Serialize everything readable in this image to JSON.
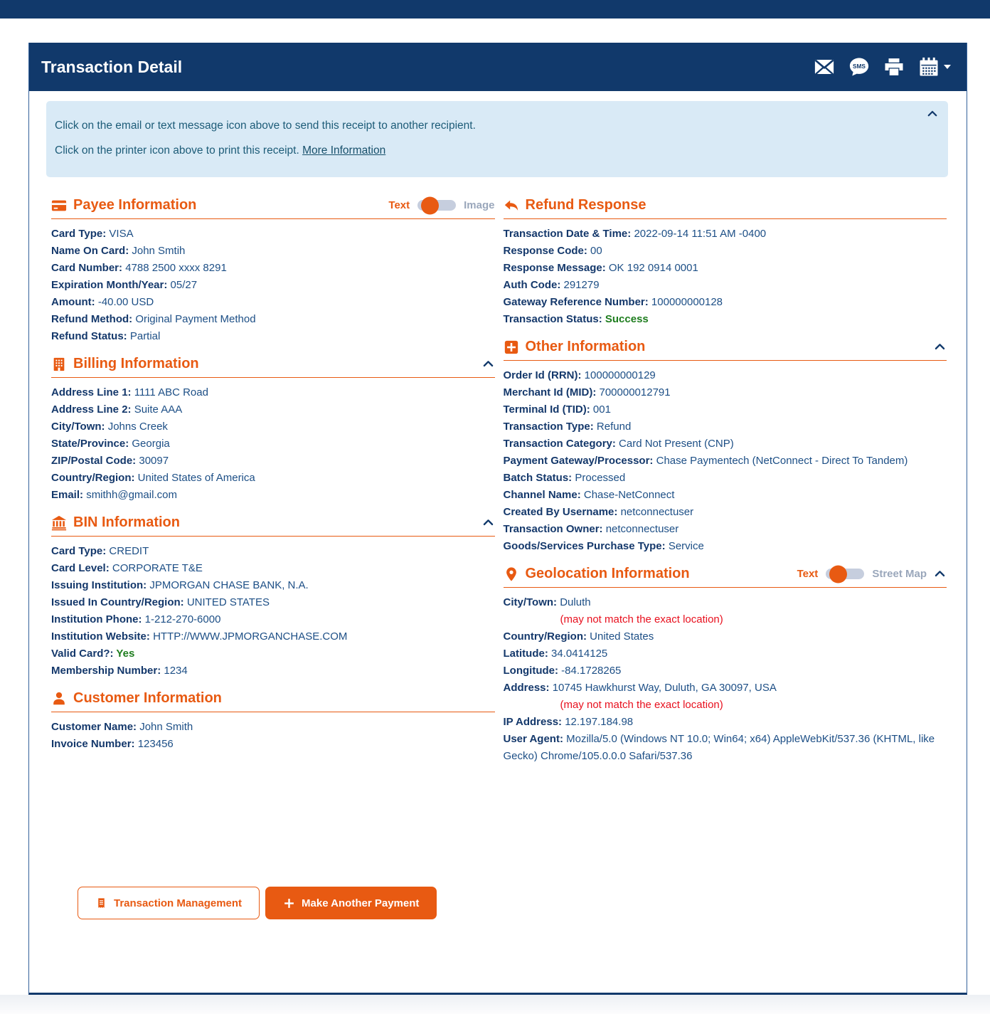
{
  "colors": {
    "navy": "#11396B",
    "accent_orange": "#E85A12",
    "success_green": "#1E7D1E",
    "alert_red": "#E8101E",
    "banner_bg": "#D9EAF6",
    "toggle_track": "#C6CEDE"
  },
  "header": {
    "title": "Transaction Detail",
    "icons": [
      {
        "name": "email-icon"
      },
      {
        "name": "sms-icon"
      },
      {
        "name": "print-icon"
      },
      {
        "name": "calendar-icon"
      }
    ]
  },
  "banner": {
    "line1": "Click on the email or text message icon above to send this receipt to another recipient.",
    "line2": "Click on the printer icon above to print this receipt.",
    "link_label": "More Information"
  },
  "sections": {
    "payee": {
      "title": "Payee Information",
      "toggle": {
        "on": "Text",
        "off": "Image"
      },
      "fields": [
        {
          "label": "Card Type",
          "value": "VISA"
        },
        {
          "label": "Name On Card",
          "value": "John Smtih"
        },
        {
          "label": "Card Number",
          "value": "4788 2500 xxxx 8291"
        },
        {
          "label": "Expiration Month/Year",
          "value": "05/27"
        },
        {
          "label": "Amount",
          "value": "-40.00 USD"
        },
        {
          "label": "Refund Method",
          "value": "Original Payment Method"
        },
        {
          "label": "Refund Status",
          "value": "Partial"
        }
      ]
    },
    "billing": {
      "title": "Billing Information",
      "fields": [
        {
          "label": "Address Line 1",
          "value": "1111 ABC Road"
        },
        {
          "label": "Address Line 2",
          "value": "Suite AAA"
        },
        {
          "label": "City/Town",
          "value": "Johns Creek"
        },
        {
          "label": "State/Province",
          "value": "Georgia"
        },
        {
          "label": "ZIP/Postal Code",
          "value": "30097"
        },
        {
          "label": "Country/Region",
          "value": "United States of America"
        },
        {
          "label": "Email",
          "value": "smithh@gmail.com"
        }
      ]
    },
    "bin": {
      "title": "BIN Information",
      "fields": [
        {
          "label": "Card Type",
          "value": "CREDIT"
        },
        {
          "label": "Card Level",
          "value": "CORPORATE T&E"
        },
        {
          "label": "Issuing Institution",
          "value": "JPMORGAN CHASE BANK, N.A."
        },
        {
          "label": "Issued In Country/Region",
          "value": "UNITED STATES"
        },
        {
          "label": "Institution Phone",
          "value": "1-212-270-6000"
        },
        {
          "label": "Institution Website",
          "value": "HTTP://WWW.JPMORGANCHASE.COM"
        },
        {
          "label": "Valid Card?",
          "value": "Yes",
          "color": "green"
        },
        {
          "label": "Membership Number",
          "value": "1234"
        }
      ]
    },
    "customer": {
      "title": "Customer Information",
      "fields": [
        {
          "label": "Customer Name",
          "value": "John Smith"
        },
        {
          "label": "Invoice Number",
          "value": "123456"
        }
      ]
    },
    "refund": {
      "title": "Refund Response",
      "fields": [
        {
          "label": "Transaction Date & Time",
          "value": "2022-09-14 11:51 AM -0400"
        },
        {
          "label": "Response Code",
          "value": "00"
        },
        {
          "label": "Response Message",
          "value": "OK 192 0914 0001"
        },
        {
          "label": "Auth Code",
          "value": "291279"
        },
        {
          "label": "Gateway Reference Number",
          "value": "100000000128"
        },
        {
          "label": "Transaction Status",
          "value": "Success",
          "color": "green"
        }
      ]
    },
    "other": {
      "title": "Other Information",
      "fields": [
        {
          "label": "Order Id (RRN)",
          "value": "100000000129"
        },
        {
          "label": "Merchant Id (MID)",
          "value": "700000012791"
        },
        {
          "label": "Terminal Id (TID)",
          "value": "001"
        },
        {
          "label": "Transaction Type",
          "value": "Refund"
        },
        {
          "label": "Transaction Category",
          "value": "Card Not Present (CNP)"
        },
        {
          "label": "Payment Gateway/Processor",
          "value": "Chase Paymentech (NetConnect - Direct To Tandem)"
        },
        {
          "label": "Batch Status",
          "value": "Processed"
        },
        {
          "label": "Channel Name",
          "value": "Chase-NetConnect"
        },
        {
          "label": "Created By Username",
          "value": "netconnectuser"
        },
        {
          "label": "Transaction Owner",
          "value": "netconnectuser"
        },
        {
          "label": "Goods/Services Purchase Type",
          "value": "Service"
        }
      ]
    },
    "geolocation": {
      "title": "Geolocation Information",
      "toggle": {
        "on": "Text",
        "off": "Street Map"
      },
      "fields": [
        {
          "label": "City/Town",
          "value": "Duluth"
        },
        {
          "note": "(may not match the exact location)"
        },
        {
          "label": "Country/Region",
          "value": "United States"
        },
        {
          "label": "Latitude",
          "value": "34.0414125"
        },
        {
          "label": "Longitude",
          "value": "-84.1728265"
        },
        {
          "label": "Address",
          "value": "10745 Hawkhurst Way, Duluth, GA 30097, USA"
        },
        {
          "note": "(may not match the exact location)"
        },
        {
          "label": "IP Address",
          "value": "12.197.184.98"
        },
        {
          "label": "User Agent",
          "value": "Mozilla/5.0 (Windows NT 10.0; Win64; x64) AppleWebKit/537.36 (KHTML, like Gecko) Chrome/105.0.0.0 Safari/537.36"
        }
      ]
    }
  },
  "footer_buttons": {
    "transaction_management": "Transaction Management",
    "make_another_payment": "Make Another Payment"
  }
}
